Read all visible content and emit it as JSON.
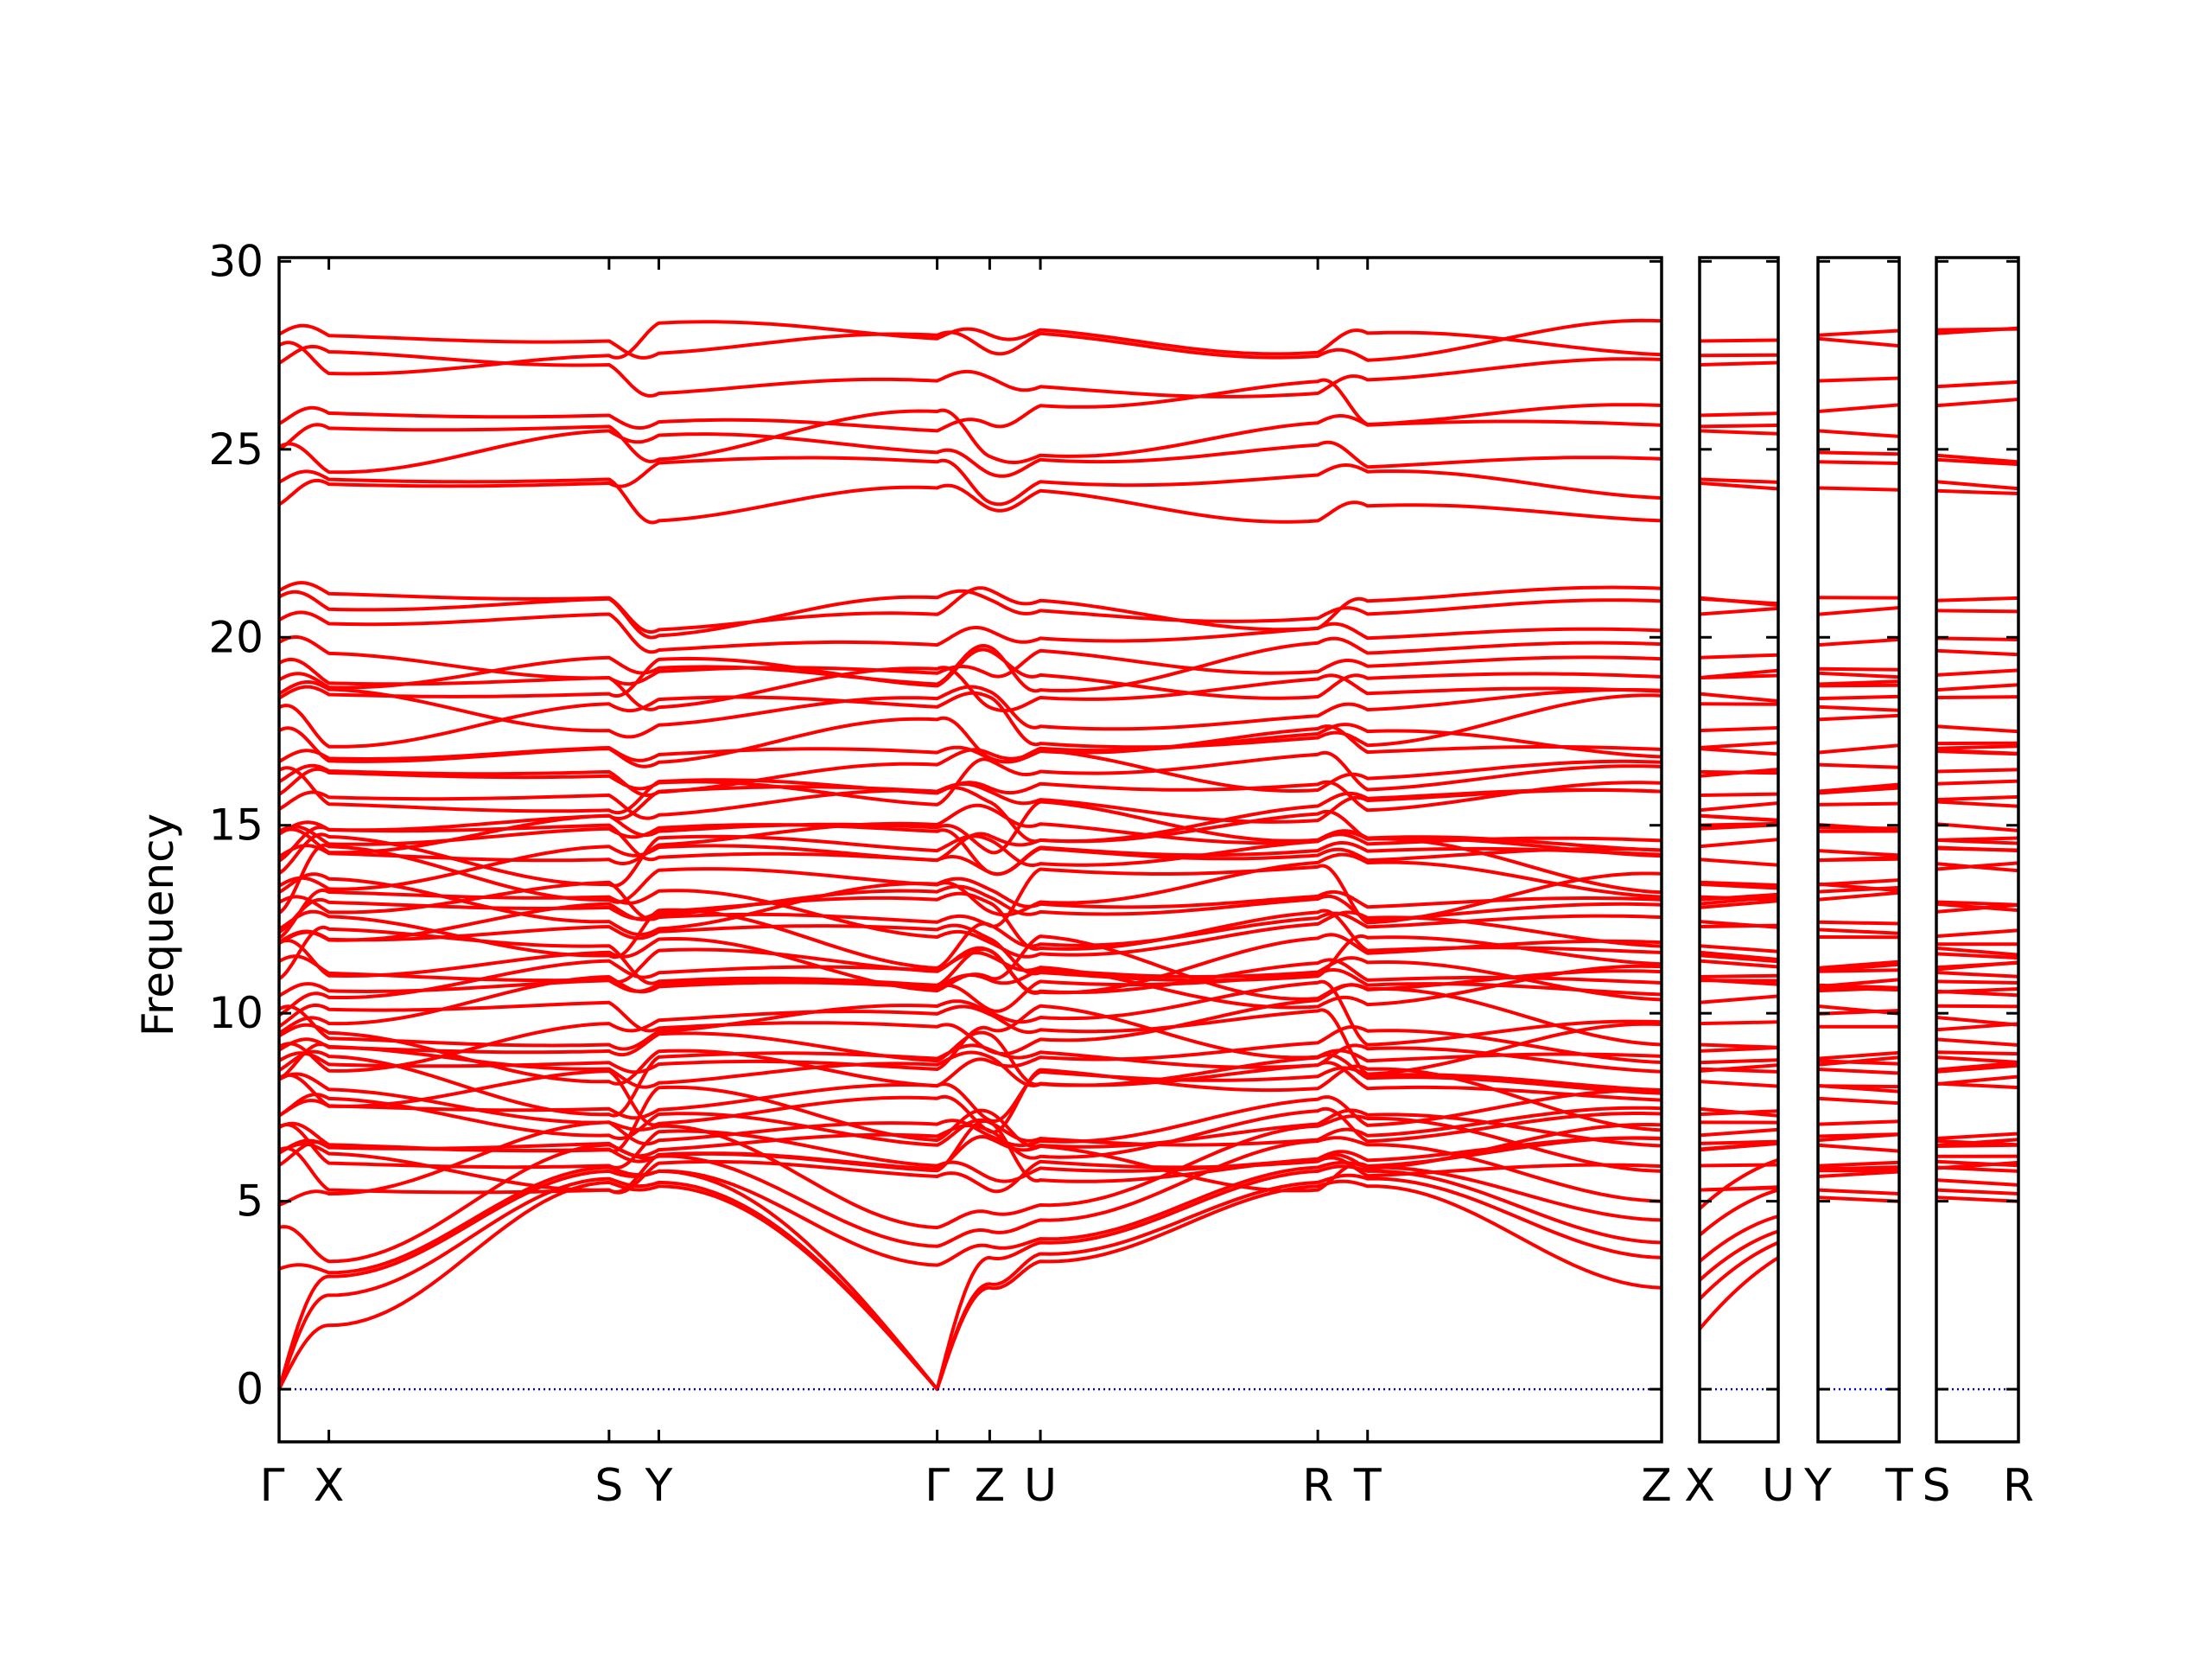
{
  "chart_data": {
    "type": "line",
    "title": "",
    "xlabel": "",
    "ylabel": "Frequency",
    "ylim": [
      -1.4,
      30.1
    ],
    "yticks": [
      0,
      5,
      10,
      15,
      20,
      25,
      30
    ],
    "ytick_labels": [
      "0",
      "5",
      "10",
      "15",
      "20",
      "25",
      "30"
    ],
    "grid": false,
    "legend": "none",
    "colors": {
      "bands": "#ff0000",
      "zero_line": "#0000cc",
      "axes": "#000000"
    },
    "panels": [
      {
        "segments": [
          "Γ-X",
          "X-S",
          "S-Y",
          "Y-Γ",
          "Γ-Z",
          "Z-U",
          "U-R",
          "R-T",
          "T-Z"
        ],
        "kpoints": [
          "Γ",
          "X",
          "S",
          "Y",
          "Γ",
          "Z",
          "U",
          "R",
          "T",
          "Z"
        ],
        "kpoint_x": [
          0.0,
          0.054,
          0.358,
          0.412,
          0.714,
          0.771,
          0.826,
          1.127,
          1.181,
          1.5
        ]
      },
      {
        "segments": [
          "X-U"
        ],
        "kpoints": [
          "X",
          "U"
        ],
        "kpoint_x": [
          0.0,
          1.0
        ]
      },
      {
        "segments": [
          "Y-T"
        ],
        "kpoints": [
          "Y",
          "T"
        ],
        "kpoint_x": [
          0.0,
          1.0
        ]
      },
      {
        "segments": [
          "S-R"
        ],
        "kpoints": [
          "S",
          "R"
        ],
        "kpoint_x": [
          0.0,
          1.0
        ]
      }
    ],
    "kpoint_tick_labels": [
      "Γ",
      "X",
      "S",
      "Y",
      "Γ",
      "Z",
      "U",
      "R",
      "T",
      "Z",
      "X",
      "U",
      "Y",
      "T",
      "S",
      "R"
    ],
    "series": [
      {
        "name": "",
        "kind": "acoustic",
        "values_at_kpoints": [
          0.0,
          1.7,
          5.5,
          5.4,
          0.0,
          2.7,
          3.4,
          5.4,
          5.4,
          2.7
        ]
      },
      {
        "name": "",
        "kind": "acoustic",
        "values_at_kpoints": [
          0.0,
          2.5,
          5.6,
          5.5,
          0.0,
          2.8,
          3.6,
          5.5,
          5.6,
          3.5
        ]
      },
      {
        "name": "",
        "kind": "acoustic",
        "values_at_kpoints": [
          0.0,
          3.0,
          5.8,
          5.8,
          0.0,
          3.5,
          3.9,
          5.8,
          5.8,
          3.9
        ]
      },
      {
        "name": "",
        "kind": "optical-low",
        "values_at_kpoints": [
          3.2,
          3.1,
          5.9,
          5.8,
          3.3,
          3.8,
          4.0,
          5.9,
          5.9,
          4.5
        ]
      },
      {
        "name": "",
        "kind": "optical-low",
        "values_at_kpoints": [
          4.3,
          3.4,
          6.5,
          6.2,
          3.8,
          4.2,
          4.5,
          6.6,
          6.5,
          5.0
        ]
      },
      {
        "name": "",
        "kind": "optical-low",
        "values_at_kpoints": [
          4.9,
          5.2,
          7.1,
          7.0,
          4.3,
          4.7,
          4.9,
          7.0,
          7.2,
          5.8
        ]
      },
      {
        "name": "",
        "kind": "band-stack",
        "count": 40,
        "range": [
          5.6,
          15.7
        ]
      },
      {
        "name": "",
        "kind": "band-stack",
        "count": 14,
        "range": [
          15.7,
          21.1
        ]
      },
      {
        "name": "",
        "kind": "band-stack",
        "count": 8,
        "range": [
          23.4,
          28.7
        ]
      }
    ]
  }
}
